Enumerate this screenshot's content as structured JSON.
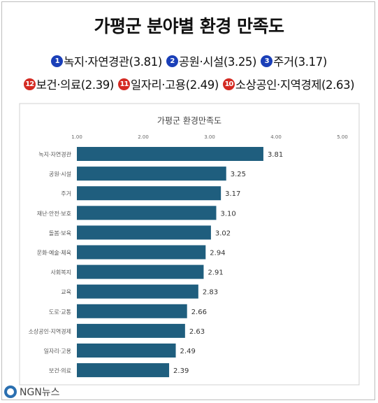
{
  "header": {
    "title": "가평군 분야별 환경 만족도",
    "rows": [
      [
        {
          "badge": "1",
          "badge_color": "#1a3fb8",
          "label": "녹지·자연경관(3.81)"
        },
        {
          "badge": "2",
          "badge_color": "#1a3fb8",
          "label": "공원·시설(3.25)"
        },
        {
          "badge": "3",
          "badge_color": "#1a3fb8",
          "label": "주거(3.17)"
        }
      ],
      [
        {
          "badge": "12",
          "badge_color": "#d42a22",
          "label": "보건·의료(2.39)"
        },
        {
          "badge": "11",
          "badge_color": "#d42a22",
          "label": "일자리·고용(2.49)"
        },
        {
          "badge": "10",
          "badge_color": "#d42a22",
          "label": "소상공인·지역경제(2.63)"
        }
      ]
    ]
  },
  "chart_data": {
    "type": "bar",
    "orientation": "horizontal",
    "title": "가평군 환경만족도",
    "categories": [
      "녹지·자연경관",
      "공원·시설",
      "주거",
      "재난·안전·보호",
      "돌봄·보육",
      "문화·예술·체육",
      "사회복지",
      "교육",
      "도로·교통",
      "소상공인·지역경제",
      "일자리·고용",
      "보건·의료"
    ],
    "values": [
      3.81,
      3.25,
      3.17,
      3.1,
      3.02,
      2.94,
      2.91,
      2.83,
      2.66,
      2.63,
      2.49,
      2.39
    ],
    "value_labels": [
      "3.81",
      "3.25",
      "3.17",
      "3.10",
      "3.02",
      "2.94",
      "2.91",
      "2.83",
      "2.66",
      "2.63",
      "2.49",
      "2.39"
    ],
    "color": "#1f5e7e",
    "xlim": [
      1,
      5
    ],
    "xticks": [
      {
        "value": 1,
        "label": "1.00"
      },
      {
        "value": 2,
        "label": "2.00"
      },
      {
        "value": 3,
        "label": "3.00"
      },
      {
        "value": 4,
        "label": "4.00"
      },
      {
        "value": 5,
        "label": "5.00"
      }
    ]
  },
  "footer": {
    "brand": "NGN뉴스"
  }
}
